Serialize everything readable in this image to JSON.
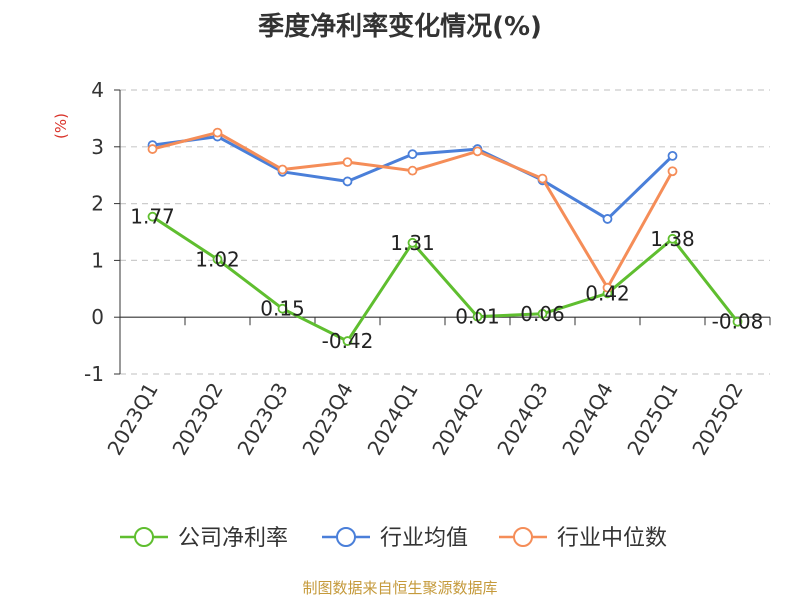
{
  "source_text": "制图数据来自恒生聚源数据库",
  "chart_data": {
    "type": "line",
    "title": "季度净利率变化情况(%)",
    "ylabel": "(%)",
    "xlabel": "",
    "ylim": [
      -1,
      4
    ],
    "yticks": [
      -1,
      0,
      1,
      2,
      3,
      4
    ],
    "grid": true,
    "legend_position": "bottom",
    "categories": [
      "2023Q1",
      "2023Q2",
      "2023Q3",
      "2023Q4",
      "2024Q1",
      "2024Q2",
      "2024Q3",
      "2024Q4",
      "2025Q1",
      "2025Q2"
    ],
    "series": [
      {
        "name": "公司净利率",
        "color": "#5fbe2f",
        "values": [
          1.77,
          1.02,
          0.15,
          -0.42,
          1.31,
          0.01,
          0.06,
          0.42,
          1.38,
          -0.08
        ],
        "labels": [
          "1.77",
          "1.02",
          "0.15",
          "-0.42",
          "1.31",
          "0.01",
          "0.06",
          "0.42",
          "1.38",
          "-0.08"
        ]
      },
      {
        "name": "行业均值",
        "color": "#4a7fd9",
        "values": [
          3.03,
          3.18,
          2.56,
          2.39,
          2.87,
          2.96,
          2.41,
          1.73,
          2.84,
          null
        ]
      },
      {
        "name": "行业中位数",
        "color": "#f58d58",
        "values": [
          2.96,
          3.25,
          2.6,
          2.73,
          2.58,
          2.92,
          2.44,
          0.52,
          2.57,
          null
        ]
      }
    ]
  }
}
